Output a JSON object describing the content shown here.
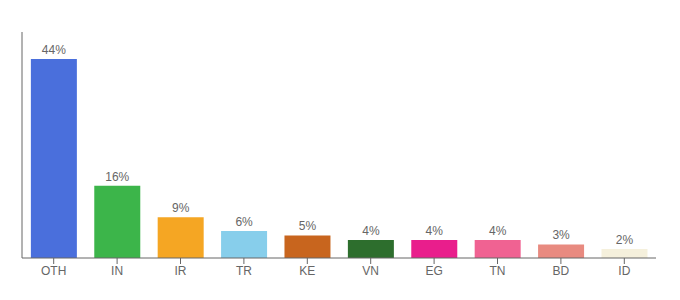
{
  "chart_data": {
    "type": "bar",
    "categories": [
      "OTH",
      "IN",
      "IR",
      "TR",
      "KE",
      "VN",
      "EG",
      "TN",
      "BD",
      "ID"
    ],
    "values": [
      44,
      16,
      9,
      6,
      5,
      4,
      4,
      4,
      3,
      2
    ],
    "value_labels": [
      "44%",
      "16%",
      "9%",
      "6%",
      "5%",
      "4%",
      "4%",
      "4%",
      "3%",
      "2%"
    ],
    "colors": [
      "#4a6fdc",
      "#3cb54a",
      "#f5a623",
      "#87ceeb",
      "#c8651e",
      "#2d6e2d",
      "#e91e8c",
      "#f06292",
      "#e88a80",
      "#f5f0dc"
    ],
    "ylim": [
      0,
      50
    ],
    "data_labels": true,
    "tick_labels": "x",
    "grid": false
  }
}
